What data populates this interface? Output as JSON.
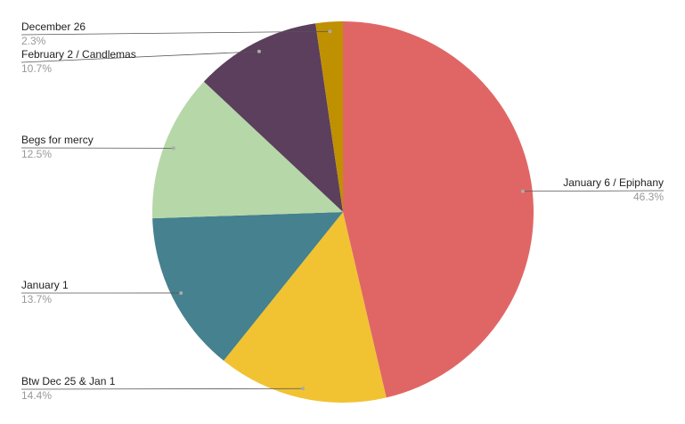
{
  "chart_data": {
    "type": "pie",
    "categories": [
      "January 6 / Epiphany",
      "Btw Dec 25 & Jan 1",
      "January 1",
      "Begs for mercy",
      "February 2 / Candlemas",
      "December 26"
    ],
    "values": [
      46.3,
      14.4,
      13.7,
      12.5,
      10.7,
      2.3
    ],
    "value_labels": [
      "46.3%",
      "14.4%",
      "13.7%",
      "12.5%",
      "10.7%",
      "2.3%"
    ],
    "colors": [
      "#e06666",
      "#f1c232",
      "#45818e",
      "#b6d7a8",
      "#5b3f5c",
      "#bf9000"
    ]
  }
}
